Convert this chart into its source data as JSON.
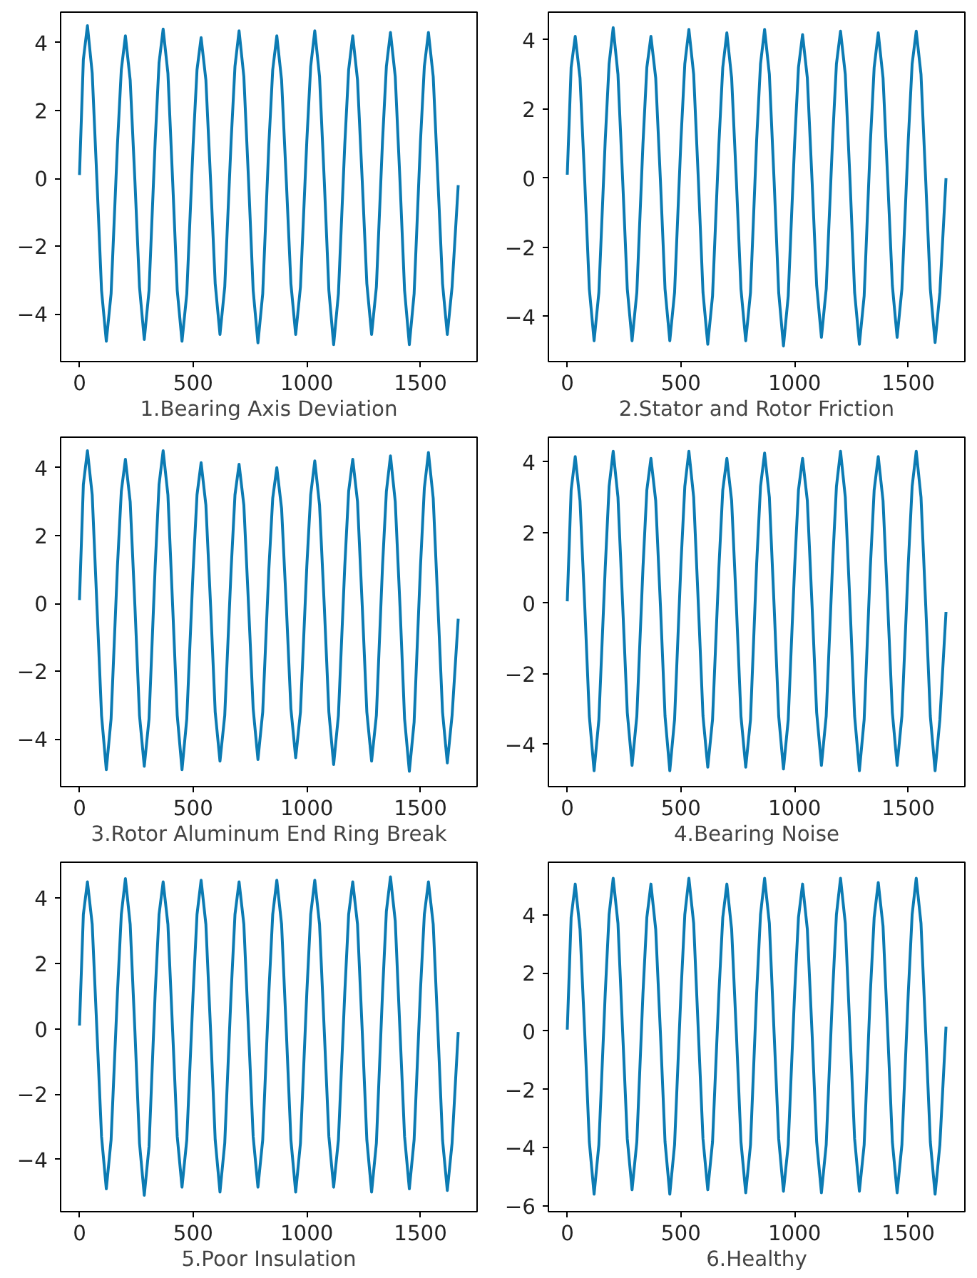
{
  "chart_data": [
    {
      "type": "line",
      "xlabel": "1.Bearing Axis Deviation",
      "xlim": [
        -83,
        1749
      ],
      "ylim": [
        -5.4,
        4.9
      ],
      "xticks": [
        0,
        500,
        1000,
        1500
      ],
      "yticks": [
        -4,
        -2,
        0,
        2,
        4
      ],
      "x": [
        0,
        17,
        35,
        56,
        77,
        97,
        118,
        139,
        167,
        184,
        202,
        223,
        244,
        264,
        285,
        306,
        333,
        350,
        368,
        389,
        410,
        430,
        451,
        472,
        500,
        517,
        535,
        556,
        577,
        597,
        618,
        639,
        667,
        684,
        702,
        723,
        744,
        764,
        785,
        806,
        833,
        850,
        868,
        889,
        910,
        930,
        951,
        972,
        1000,
        1017,
        1035,
        1056,
        1077,
        1097,
        1118,
        1139,
        1167,
        1184,
        1202,
        1223,
        1244,
        1264,
        1285,
        1306,
        1333,
        1350,
        1368,
        1389,
        1410,
        1430,
        1451,
        1472,
        1500,
        1517,
        1535,
        1556,
        1577,
        1597,
        1618,
        1639,
        1666
      ],
      "series": [
        {
          "color": "#0c7bb3",
          "values": [
            0.1,
            3.5,
            4.5,
            3.1,
            -0.1,
            -3.3,
            -4.8,
            -3.4,
            1.0,
            3.2,
            4.2,
            2.9,
            -0.1,
            -3.2,
            -4.75,
            -3.3,
            1.1,
            3.4,
            4.4,
            3.1,
            -0.1,
            -3.3,
            -4.8,
            -3.4,
            1.0,
            3.2,
            4.15,
            2.9,
            -0.1,
            -3.1,
            -4.6,
            -3.2,
            1.1,
            3.3,
            4.35,
            3.0,
            -0.1,
            -3.3,
            -4.85,
            -3.4,
            1.0,
            3.2,
            4.2,
            2.9,
            -0.1,
            -3.1,
            -4.6,
            -3.2,
            1.1,
            3.3,
            4.35,
            3.0,
            -0.1,
            -3.3,
            -4.9,
            -3.4,
            1.0,
            3.2,
            4.2,
            2.9,
            -0.1,
            -3.1,
            -4.6,
            -3.2,
            1.1,
            3.3,
            4.3,
            3.0,
            -0.1,
            -3.3,
            -4.9,
            -3.4,
            1.1,
            3.3,
            4.3,
            3.0,
            -0.1,
            -3.1,
            -4.6,
            -3.2,
            -0.2
          ]
        }
      ]
    },
    {
      "type": "line",
      "xlabel": "2.Stator and Rotor Friction",
      "xlim": [
        -83,
        1749
      ],
      "ylim": [
        -5.3,
        4.8
      ],
      "xticks": [
        0,
        500,
        1000,
        1500
      ],
      "yticks": [
        -4,
        -2,
        0,
        2,
        4
      ],
      "x": [
        0,
        17,
        35,
        56,
        77,
        97,
        118,
        139,
        167,
        184,
        202,
        223,
        244,
        264,
        285,
        306,
        333,
        350,
        368,
        389,
        410,
        430,
        451,
        472,
        500,
        517,
        535,
        556,
        577,
        597,
        618,
        639,
        667,
        684,
        702,
        723,
        744,
        764,
        785,
        806,
        833,
        850,
        868,
        889,
        910,
        930,
        951,
        972,
        1000,
        1017,
        1035,
        1056,
        1077,
        1097,
        1118,
        1139,
        1167,
        1184,
        1202,
        1223,
        1244,
        1264,
        1285,
        1306,
        1333,
        1350,
        1368,
        1389,
        1410,
        1430,
        1451,
        1472,
        1500,
        1517,
        1535,
        1556,
        1577,
        1597,
        1618,
        1639,
        1666
      ],
      "series": [
        {
          "color": "#0c7bb3",
          "values": [
            0.1,
            3.2,
            4.1,
            2.9,
            -0.1,
            -3.2,
            -4.7,
            -3.3,
            1.1,
            3.3,
            4.35,
            3.0,
            -0.1,
            -3.2,
            -4.7,
            -3.3,
            1.0,
            3.2,
            4.1,
            2.9,
            -0.1,
            -3.2,
            -4.7,
            -3.3,
            1.1,
            3.3,
            4.3,
            3.0,
            -0.1,
            -3.3,
            -4.8,
            -3.4,
            1.0,
            3.2,
            4.2,
            2.9,
            -0.1,
            -3.2,
            -4.7,
            -3.3,
            1.1,
            3.3,
            4.3,
            3.0,
            -0.1,
            -3.3,
            -4.85,
            -3.4,
            1.0,
            3.2,
            4.15,
            2.9,
            -0.1,
            -3.1,
            -4.6,
            -3.2,
            1.1,
            3.3,
            4.25,
            3.0,
            -0.1,
            -3.3,
            -4.8,
            -3.4,
            1.0,
            3.2,
            4.2,
            2.9,
            -0.1,
            -3.1,
            -4.6,
            -3.2,
            1.1,
            3.3,
            4.25,
            3.0,
            -0.1,
            -3.2,
            -4.75,
            -3.3,
            0.0
          ]
        }
      ]
    },
    {
      "type": "line",
      "xlabel": "3.Rotor Aluminum End Ring Break",
      "xlim": [
        -83,
        1749
      ],
      "ylim": [
        -5.4,
        4.9
      ],
      "xticks": [
        0,
        500,
        1000,
        1500
      ],
      "yticks": [
        -4,
        -2,
        0,
        2,
        4
      ],
      "x": [
        0,
        17,
        35,
        56,
        77,
        97,
        118,
        139,
        167,
        184,
        202,
        223,
        244,
        264,
        285,
        306,
        333,
        350,
        368,
        389,
        410,
        430,
        451,
        472,
        500,
        517,
        535,
        556,
        577,
        597,
        618,
        639,
        667,
        684,
        702,
        723,
        744,
        764,
        785,
        806,
        833,
        850,
        868,
        889,
        910,
        930,
        951,
        972,
        1000,
        1017,
        1035,
        1056,
        1077,
        1097,
        1118,
        1139,
        1167,
        1184,
        1202,
        1223,
        1244,
        1264,
        1285,
        1306,
        1333,
        1350,
        1368,
        1389,
        1410,
        1430,
        1451,
        1472,
        1500,
        1517,
        1535,
        1556,
        1577,
        1597,
        1618,
        1639,
        1666
      ],
      "series": [
        {
          "color": "#0c7bb3",
          "values": [
            0.1,
            3.5,
            4.5,
            3.2,
            -0.1,
            -3.3,
            -4.9,
            -3.4,
            1.1,
            3.3,
            4.25,
            3.0,
            -0.1,
            -3.3,
            -4.8,
            -3.4,
            1.1,
            3.5,
            4.5,
            3.2,
            -0.1,
            -3.3,
            -4.9,
            -3.4,
            1.0,
            3.2,
            4.15,
            2.9,
            -0.1,
            -3.2,
            -4.65,
            -3.3,
            1.0,
            3.2,
            4.1,
            2.9,
            -0.1,
            -3.1,
            -4.6,
            -3.2,
            1.0,
            3.1,
            4.0,
            2.8,
            -0.1,
            -3.1,
            -4.55,
            -3.2,
            1.1,
            3.2,
            4.2,
            2.9,
            -0.1,
            -3.2,
            -4.75,
            -3.3,
            1.1,
            3.3,
            4.25,
            3.0,
            -0.1,
            -3.2,
            -4.65,
            -3.3,
            1.1,
            3.3,
            4.35,
            3.0,
            -0.1,
            -3.4,
            -4.95,
            -3.5,
            1.1,
            3.4,
            4.45,
            3.1,
            -0.1,
            -3.2,
            -4.7,
            -3.3,
            -0.45
          ]
        }
      ]
    },
    {
      "type": "line",
      "xlabel": "4.Bearing Noise",
      "xlim": [
        -83,
        1749
      ],
      "ylim": [
        -5.2,
        4.7
      ],
      "xticks": [
        0,
        500,
        1000,
        1500
      ],
      "yticks": [
        -4,
        -2,
        0,
        2,
        4
      ],
      "x": [
        0,
        17,
        35,
        56,
        77,
        97,
        118,
        139,
        167,
        184,
        202,
        223,
        244,
        264,
        285,
        306,
        333,
        350,
        368,
        389,
        410,
        430,
        451,
        472,
        500,
        517,
        535,
        556,
        577,
        597,
        618,
        639,
        667,
        684,
        702,
        723,
        744,
        764,
        785,
        806,
        833,
        850,
        868,
        889,
        910,
        930,
        951,
        972,
        1000,
        1017,
        1035,
        1056,
        1077,
        1097,
        1118,
        1139,
        1167,
        1184,
        1202,
        1223,
        1244,
        1264,
        1285,
        1306,
        1333,
        1350,
        1368,
        1389,
        1410,
        1430,
        1451,
        1472,
        1500,
        1517,
        1535,
        1556,
        1577,
        1597,
        1618,
        1639,
        1666
      ],
      "series": [
        {
          "color": "#0c7bb3",
          "values": [
            0.05,
            3.2,
            4.15,
            2.9,
            -0.1,
            -3.2,
            -4.75,
            -3.3,
            1.0,
            3.3,
            4.3,
            3.0,
            -0.1,
            -3.1,
            -4.6,
            -3.2,
            1.0,
            3.2,
            4.1,
            2.9,
            -0.1,
            -3.2,
            -4.75,
            -3.3,
            1.1,
            3.3,
            4.3,
            3.0,
            -0.1,
            -3.2,
            -4.65,
            -3.3,
            1.0,
            3.2,
            4.1,
            2.9,
            -0.1,
            -3.2,
            -4.65,
            -3.3,
            1.1,
            3.3,
            4.25,
            3.0,
            -0.1,
            -3.2,
            -4.7,
            -3.3,
            1.0,
            3.2,
            4.1,
            2.9,
            -0.1,
            -3.1,
            -4.6,
            -3.2,
            1.1,
            3.3,
            4.3,
            3.0,
            -0.1,
            -3.2,
            -4.75,
            -3.3,
            1.0,
            3.2,
            4.15,
            2.9,
            -0.1,
            -3.1,
            -4.6,
            -3.2,
            1.1,
            3.3,
            4.3,
            3.0,
            -0.1,
            -3.2,
            -4.75,
            -3.3,
            -0.25
          ]
        }
      ]
    },
    {
      "type": "line",
      "xlabel": "5.Poor Insulation",
      "xlim": [
        -83,
        1749
      ],
      "ylim": [
        -5.6,
        5.1
      ],
      "xticks": [
        0,
        500,
        1000,
        1500
      ],
      "yticks": [
        -4,
        -2,
        0,
        2,
        4
      ],
      "x": [
        0,
        17,
        35,
        56,
        77,
        97,
        118,
        139,
        167,
        184,
        202,
        223,
        244,
        264,
        285,
        306,
        333,
        350,
        368,
        389,
        410,
        430,
        451,
        472,
        500,
        517,
        535,
        556,
        577,
        597,
        618,
        639,
        667,
        684,
        702,
        723,
        744,
        764,
        785,
        806,
        833,
        850,
        868,
        889,
        910,
        930,
        951,
        972,
        1000,
        1017,
        1035,
        1056,
        1077,
        1097,
        1118,
        1139,
        1167,
        1184,
        1202,
        1223,
        1244,
        1264,
        1285,
        1306,
        1333,
        1350,
        1368,
        1389,
        1410,
        1430,
        1451,
        1472,
        1500,
        1517,
        1535,
        1556,
        1577,
        1597,
        1618,
        1639,
        1666
      ],
      "series": [
        {
          "color": "#0c7bb3",
          "values": [
            0.1,
            3.5,
            4.5,
            3.2,
            -0.1,
            -3.3,
            -4.9,
            -3.4,
            1.1,
            3.5,
            4.6,
            3.2,
            -0.1,
            -3.5,
            -5.1,
            -3.6,
            1.1,
            3.5,
            4.5,
            3.2,
            -0.1,
            -3.3,
            -4.85,
            -3.4,
            1.1,
            3.5,
            4.55,
            3.2,
            -0.1,
            -3.4,
            -5.0,
            -3.5,
            1.1,
            3.5,
            4.5,
            3.2,
            -0.1,
            -3.3,
            -4.85,
            -3.4,
            1.1,
            3.5,
            4.55,
            3.2,
            -0.1,
            -3.4,
            -5.0,
            -3.5,
            1.1,
            3.5,
            4.55,
            3.2,
            -0.1,
            -3.3,
            -4.85,
            -3.4,
            1.1,
            3.5,
            4.5,
            3.2,
            -0.1,
            -3.4,
            -5.0,
            -3.5,
            1.1,
            3.6,
            4.65,
            3.3,
            -0.1,
            -3.3,
            -4.9,
            -3.4,
            1.2,
            3.5,
            4.5,
            3.2,
            -0.1,
            -3.4,
            -4.95,
            -3.5,
            -0.1
          ]
        }
      ]
    },
    {
      "type": "line",
      "xlabel": "6.Healthy",
      "xlim": [
        -83,
        1749
      ],
      "ylim": [
        -6.2,
        5.8
      ],
      "xticks": [
        0,
        500,
        1000,
        1500
      ],
      "yticks": [
        -6,
        -4,
        -2,
        0,
        2,
        4
      ],
      "x": [
        0,
        17,
        35,
        56,
        77,
        97,
        118,
        139,
        167,
        184,
        202,
        223,
        244,
        264,
        285,
        306,
        333,
        350,
        368,
        389,
        410,
        430,
        451,
        472,
        500,
        517,
        535,
        556,
        577,
        597,
        618,
        639,
        667,
        684,
        702,
        723,
        744,
        764,
        785,
        806,
        833,
        850,
        868,
        889,
        910,
        930,
        951,
        972,
        1000,
        1017,
        1035,
        1056,
        1077,
        1097,
        1118,
        1139,
        1167,
        1184,
        1202,
        1223,
        1244,
        1264,
        1285,
        1306,
        1333,
        1350,
        1368,
        1389,
        1410,
        1430,
        1451,
        1472,
        1500,
        1517,
        1535,
        1556,
        1577,
        1597,
        1618,
        1639,
        1666
      ],
      "series": [
        {
          "color": "#0c7bb3",
          "values": [
            0.05,
            3.9,
            5.05,
            3.5,
            -0.1,
            -3.8,
            -5.6,
            -3.9,
            1.3,
            4.0,
            5.25,
            3.7,
            -0.1,
            -3.7,
            -5.45,
            -3.8,
            1.3,
            3.9,
            5.05,
            3.5,
            -0.1,
            -3.8,
            -5.6,
            -3.9,
            1.3,
            4.0,
            5.25,
            3.7,
            -0.1,
            -3.7,
            -5.45,
            -3.8,
            1.3,
            3.9,
            5.05,
            3.5,
            -0.1,
            -3.8,
            -5.55,
            -3.9,
            1.3,
            4.0,
            5.25,
            3.7,
            -0.1,
            -3.7,
            -5.5,
            -3.9,
            1.3,
            3.9,
            5.05,
            3.5,
            -0.1,
            -3.8,
            -5.55,
            -3.9,
            1.3,
            4.0,
            5.25,
            3.7,
            -0.1,
            -3.7,
            -5.5,
            -3.9,
            1.3,
            3.9,
            5.1,
            3.6,
            -0.1,
            -3.8,
            -5.55,
            -3.9,
            1.3,
            4.0,
            5.25,
            3.7,
            -0.1,
            -3.8,
            -5.6,
            -3.9,
            0.15
          ]
        }
      ]
    }
  ]
}
